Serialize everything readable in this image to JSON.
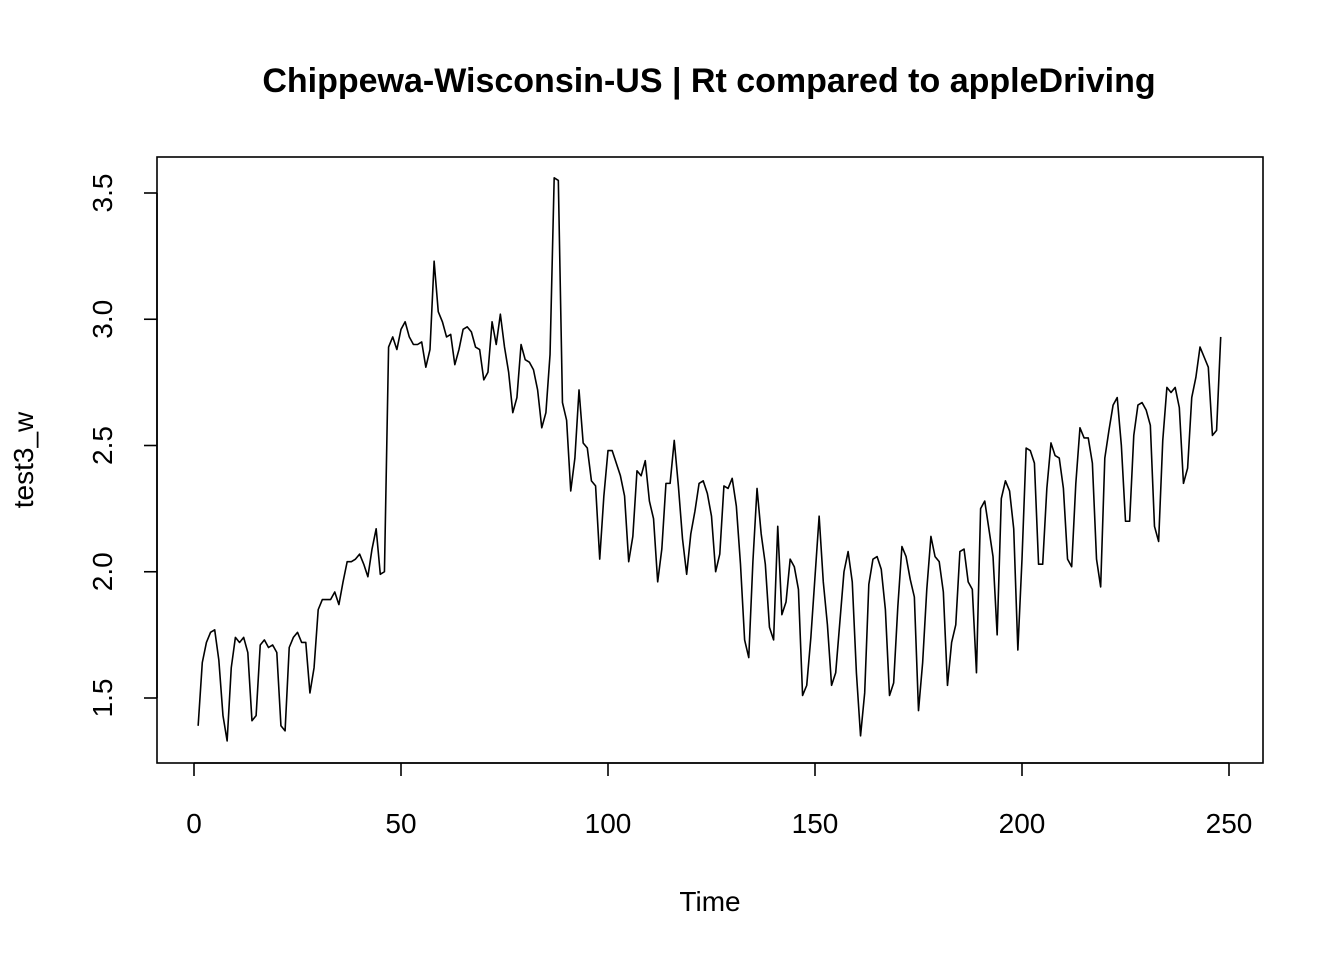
{
  "chart_data": {
    "type": "line",
    "title": "Chippewa-Wisconsin-US | Rt compared to appleDriving",
    "xlabel": "Time",
    "ylabel": "test3_w",
    "xlim": [
      0,
      250
    ],
    "ylim": [
      1.3,
      3.6
    ],
    "x_ticks": [
      "0",
      "50",
      "100",
      "150",
      "200",
      "250"
    ],
    "y_ticks": [
      "1.5",
      "2.0",
      "2.5",
      "3.0",
      "3.5"
    ],
    "x_start": 1,
    "series": [
      {
        "values": [
          1.39,
          1.64,
          1.72,
          1.76,
          1.77,
          1.65,
          1.43,
          1.33,
          1.62,
          1.74,
          1.72,
          1.74,
          1.68,
          1.41,
          1.43,
          1.71,
          1.73,
          1.7,
          1.71,
          1.68,
          1.39,
          1.37,
          1.7,
          1.74,
          1.76,
          1.72,
          1.72,
          1.52,
          1.62,
          1.85,
          1.89,
          1.89,
          1.89,
          1.92,
          1.87,
          1.96,
          2.04,
          2.04,
          2.05,
          2.07,
          2.03,
          1.98,
          2.09,
          2.17,
          1.99,
          2.0,
          2.89,
          2.93,
          2.88,
          2.96,
          2.99,
          2.93,
          2.9,
          2.9,
          2.91,
          2.81,
          2.88,
          3.23,
          3.03,
          2.99,
          2.93,
          2.94,
          2.82,
          2.88,
          2.96,
          2.97,
          2.95,
          2.89,
          2.88,
          2.76,
          2.79,
          2.99,
          2.9,
          3.02,
          2.89,
          2.79,
          2.63,
          2.69,
          2.9,
          2.84,
          2.83,
          2.8,
          2.72,
          2.57,
          2.63,
          2.86,
          3.56,
          3.55,
          2.67,
          2.6,
          2.32,
          2.45,
          2.72,
          2.51,
          2.49,
          2.36,
          2.34,
          2.05,
          2.3,
          2.48,
          2.48,
          2.43,
          2.38,
          2.3,
          2.04,
          2.14,
          2.4,
          2.38,
          2.44,
          2.28,
          2.21,
          1.96,
          2.09,
          2.35,
          2.35,
          2.52,
          2.34,
          2.13,
          1.99,
          2.15,
          2.24,
          2.35,
          2.36,
          2.31,
          2.22,
          2.0,
          2.07,
          2.34,
          2.33,
          2.37,
          2.26,
          2.03,
          1.73,
          1.66,
          2.04,
          2.33,
          2.15,
          2.03,
          1.78,
          1.73,
          2.18,
          1.83,
          1.88,
          2.05,
          2.02,
          1.93,
          1.51,
          1.55,
          1.74,
          1.98,
          2.22,
          1.96,
          1.79,
          1.55,
          1.6,
          1.8,
          2.0,
          2.08,
          1.96,
          1.6,
          1.35,
          1.52,
          1.95,
          2.05,
          2.06,
          2.01,
          1.85,
          1.51,
          1.56,
          1.86,
          2.1,
          2.06,
          1.97,
          1.9,
          1.45,
          1.64,
          1.93,
          2.14,
          2.06,
          2.04,
          1.92,
          1.55,
          1.72,
          1.79,
          2.08,
          2.09,
          1.96,
          1.93,
          1.6,
          2.25,
          2.28,
          2.17,
          2.06,
          1.75,
          2.29,
          2.36,
          2.32,
          2.17,
          1.69,
          2.05,
          2.49,
          2.48,
          2.43,
          2.03,
          2.03,
          2.33,
          2.51,
          2.46,
          2.45,
          2.33,
          2.05,
          2.02,
          2.35,
          2.57,
          2.53,
          2.53,
          2.43,
          2.05,
          1.94,
          2.45,
          2.56,
          2.66,
          2.69,
          2.5,
          2.2,
          2.2,
          2.54,
          2.66,
          2.67,
          2.64,
          2.58,
          2.18,
          2.12,
          2.52,
          2.73,
          2.71,
          2.73,
          2.65,
          2.35,
          2.41,
          2.69,
          2.77,
          2.89,
          2.85,
          2.81,
          2.54,
          2.56,
          2.93
        ]
      }
    ]
  }
}
